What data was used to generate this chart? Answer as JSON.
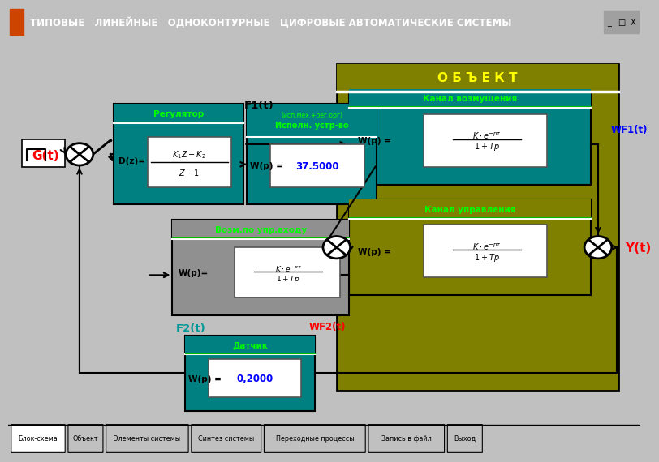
{
  "title_bar_color": "#000080",
  "title_text": "ТИПОВЫЕ   ЛИНЕЙНЫЕ   ОДНОКОНТУРНЫЕ   ЦИФРОВЫЕ АВТОМАТИЧЕСКИЕ СИСТЕМЫ",
  "bg_color": "#C0C0C0",
  "tabs": [
    "Блок-схема",
    "Объект",
    "Элементы системы",
    "Синтез системы",
    "Переходные процессы",
    "Запись в файл",
    "Выход"
  ],
  "obj_color": "#808000",
  "obj_label": "О Б Ъ Е К Т",
  "obj_label_color": "#FFFF00",
  "teal_color": "#008080",
  "olive_color": "#808000",
  "gray_box_color": "#909090",
  "green_label_color": "#00FF00",
  "kanal_vozm_label": "Канал возмущения",
  "kanal_upr_label": "Канал управления",
  "regulator_label": "Регулятор",
  "ispoln_label": "Исполн. устр-во",
  "ispoln_label2": "(исп.мех.+рег.орг)",
  "vozm_label": "Возм.по упр.входу",
  "datchik_label": "Датчик",
  "G_label": "G(t)",
  "Y_label": "Y(t)",
  "F1_label": "F1(t)",
  "F2_label": "F2(t)",
  "WF1_label": "WF1(t)",
  "WF2_label": "WF2(t)",
  "ispoln_value": "37.5000",
  "datchik_value": "0,2000",
  "regulator_dz": "D(z)=",
  "wp_label": "W(p) =",
  "wp_label2": "W(p)="
}
